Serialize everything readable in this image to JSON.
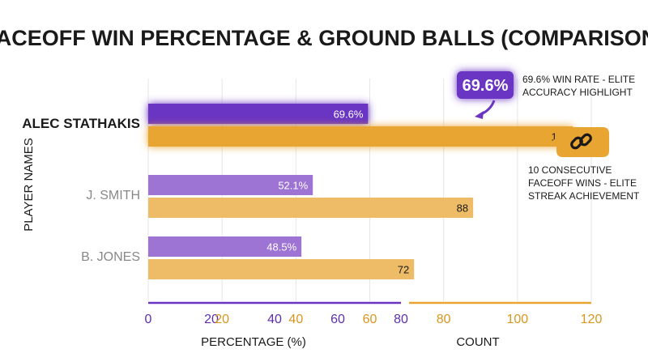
{
  "chart_data": {
    "type": "bar",
    "title": "FACEOFF WIN PERCENTAGE & GROUND BALLS (COMPARISON)",
    "ylabel": "PLAYER NAMES",
    "categories": [
      "ALEC STATHAKIS",
      "J. SMITH",
      "B. JONES"
    ],
    "series": [
      {
        "name": "PERCENTAGE (%)",
        "axis": "percentage",
        "values": [
          69.6,
          52.1,
          48.5
        ],
        "labels": [
          "69.6%",
          "52.1%",
          "48.5%"
        ]
      },
      {
        "name": "COUNT",
        "axis": "count",
        "values": [
          115,
          88,
          72
        ],
        "labels": [
          "115",
          "88",
          "72"
        ]
      }
    ],
    "axes": {
      "percentage": {
        "label": "PERCENTAGE (%)",
        "range": [
          0,
          80
        ],
        "ticks": [
          "0",
          "20",
          "40",
          "60",
          "80"
        ]
      },
      "count": {
        "label": "COUNT",
        "range": [
          0,
          120
        ],
        "ticks": [
          "20",
          "40",
          "60",
          "80",
          "100",
          "120"
        ]
      }
    },
    "grid": true,
    "annotations": {
      "win_rate_badge": "69.6%",
      "win_rate_note": [
        "69.6% WIN RATE - ELITE",
        "ACCURACY HIGHLIGHT"
      ],
      "streak_note": [
        "10 CONSECUTIVE",
        "FACEOFF WINS - ELITE",
        "STREAK ACHIEVEMENT"
      ],
      "streak_icon": "link-chain-icon"
    },
    "colors": {
      "highlight_percentage": "#6a35c2",
      "percentage": "#9d73d4",
      "highlight_count": "#e8a531",
      "count": "#eebb66",
      "text_dark": "#1a1a1a",
      "category_muted": "#888888"
    }
  }
}
